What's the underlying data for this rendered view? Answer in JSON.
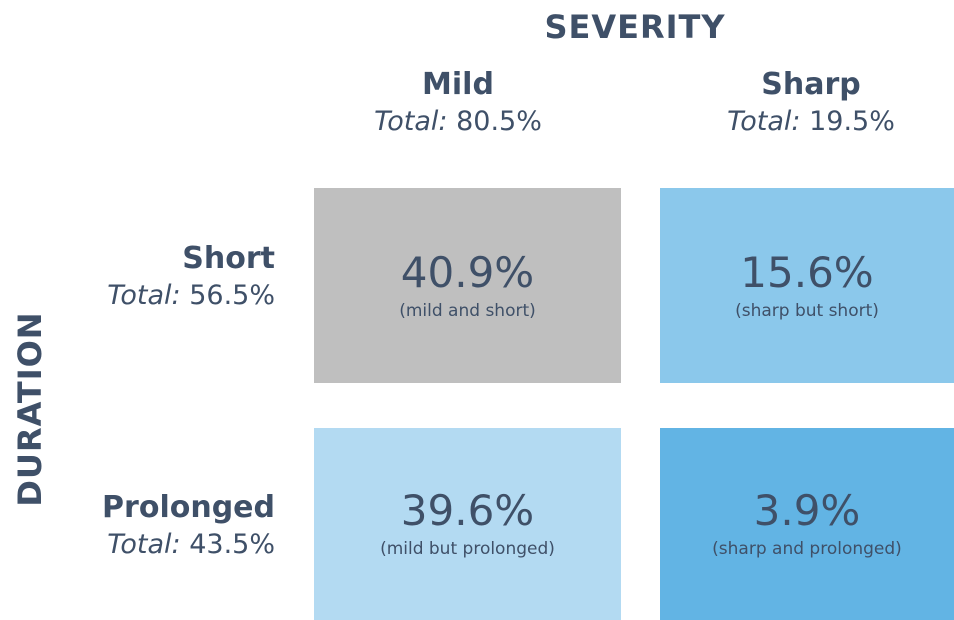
{
  "column_header": "SEVERITY",
  "row_header": "DURATION",
  "columns": [
    {
      "label": "Mild",
      "total_label": "Total:",
      "total": "80.5%"
    },
    {
      "label": "Sharp",
      "total_label": "Total:",
      "total": "19.5%"
    }
  ],
  "rows": [
    {
      "label": "Short",
      "total_label": "Total:",
      "total": "56.5%"
    },
    {
      "label": "Prolonged",
      "total_label": "Total:",
      "total": "43.5%"
    }
  ],
  "cells": [
    [
      {
        "value": "40.9%",
        "note": "(mild and short)"
      },
      {
        "value": "15.6%",
        "note": "(sharp but short)"
      }
    ],
    [
      {
        "value": "39.6%",
        "note": "(mild but prolonged)"
      },
      {
        "value": "3.9%",
        "note": "(sharp and prolonged)"
      }
    ]
  ]
}
